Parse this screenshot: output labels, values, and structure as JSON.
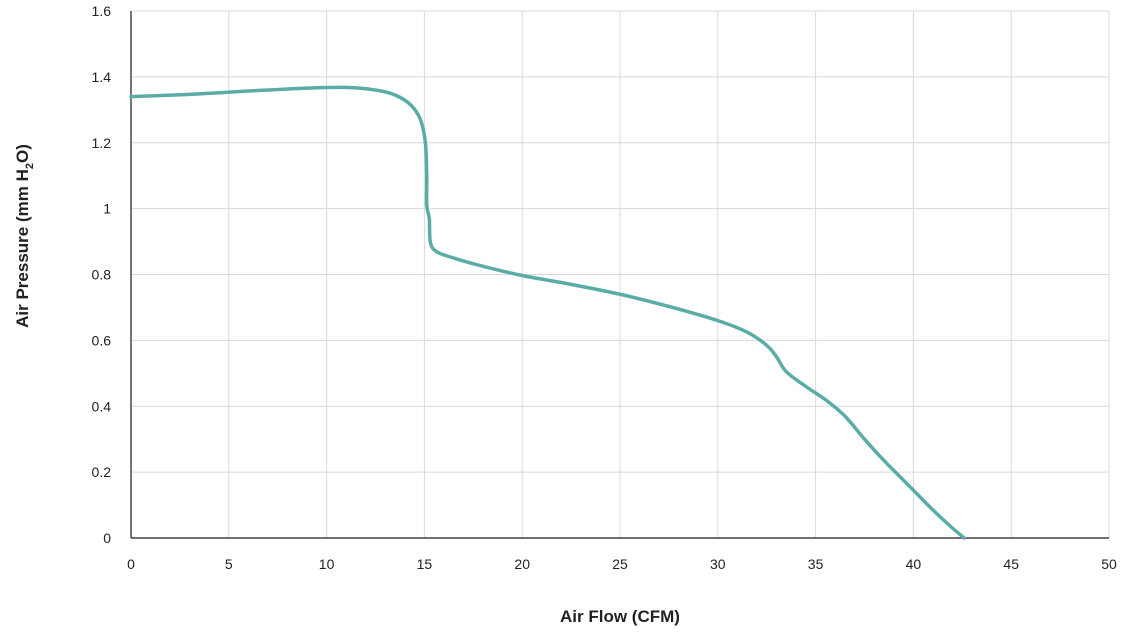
{
  "chart_data": {
    "type": "line",
    "xlabel": "Air Flow (CFM)",
    "ylabel": {
      "prefix": "Air Pressure (mm H",
      "subscript": "2",
      "suffix": "O)"
    },
    "xlim": [
      0,
      50
    ],
    "ylim": [
      0,
      1.6
    ],
    "x_ticks": [
      0,
      5,
      10,
      15,
      20,
      25,
      30,
      35,
      40,
      45,
      50
    ],
    "y_ticks": [
      0,
      0.2,
      0.4,
      0.6,
      0.8,
      1,
      1.2,
      1.4,
      1.6
    ],
    "x_tick_labels": [
      "0",
      "5",
      "10",
      "15",
      "20",
      "25",
      "30",
      "35",
      "40",
      "45",
      "50"
    ],
    "y_tick_labels": [
      "0",
      "0.2",
      "0.4",
      "0.6",
      "0.8",
      "1",
      "1.2",
      "1.4",
      "1.6"
    ],
    "grid": true,
    "legend": "none",
    "series": [
      {
        "color": "#5aaca6",
        "points": [
          [
            0,
            1.34
          ],
          [
            3,
            1.347
          ],
          [
            6,
            1.357
          ],
          [
            9,
            1.366
          ],
          [
            11,
            1.368
          ],
          [
            12.5,
            1.36
          ],
          [
            13.5,
            1.345
          ],
          [
            14.3,
            1.315
          ],
          [
            14.8,
            1.27
          ],
          [
            15.05,
            1.2
          ],
          [
            15.12,
            1.1
          ],
          [
            15.12,
            1.01
          ],
          [
            15.25,
            0.97
          ],
          [
            15.3,
            0.9
          ],
          [
            15.6,
            0.87
          ],
          [
            16.5,
            0.85
          ],
          [
            18,
            0.825
          ],
          [
            20,
            0.797
          ],
          [
            22.5,
            0.77
          ],
          [
            25,
            0.74
          ],
          [
            27.5,
            0.703
          ],
          [
            30,
            0.66
          ],
          [
            31.5,
            0.625
          ],
          [
            32.5,
            0.585
          ],
          [
            33,
            0.55
          ],
          [
            33.5,
            0.505
          ],
          [
            34.5,
            0.46
          ],
          [
            35.5,
            0.42
          ],
          [
            36.5,
            0.37
          ],
          [
            37.5,
            0.3
          ],
          [
            38.5,
            0.235
          ],
          [
            40,
            0.145
          ],
          [
            41,
            0.085
          ],
          [
            42,
            0.03
          ],
          [
            42.6,
            0
          ]
        ]
      }
    ]
  }
}
